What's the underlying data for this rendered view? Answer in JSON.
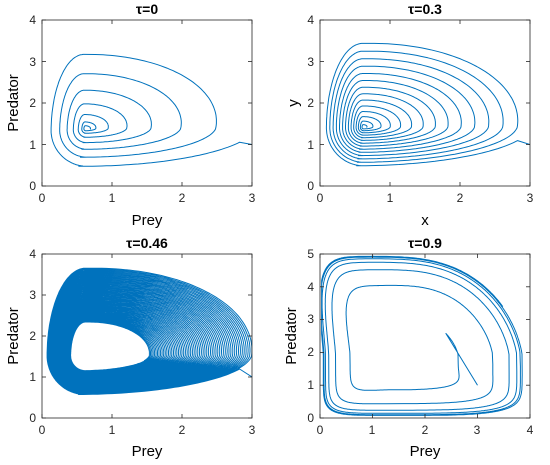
{
  "colors": {
    "line": "#0072bd",
    "axes": "#262626"
  },
  "chart_data": [
    {
      "type": "line",
      "title": "τ=0",
      "xlabel": "Prey",
      "ylabel": "Predator",
      "xlim": [
        0,
        3
      ],
      "ylim": [
        0,
        4
      ],
      "xticks": [
        0,
        1,
        2,
        3
      ],
      "yticks": [
        0,
        1,
        2,
        3,
        4
      ],
      "grid": false,
      "trajectory": {
        "start": [
          3.0,
          1.0
        ],
        "equilibrium": [
          0.62,
          1.38
        ],
        "min_radius": 0.03,
        "decay": 0.55,
        "turns": 7
      }
    },
    {
      "type": "line",
      "title": "τ=0.3",
      "xlabel": "x",
      "ylabel": "y",
      "xlim": [
        0,
        3
      ],
      "ylim": [
        0,
        4
      ],
      "xticks": [
        0,
        1,
        2,
        3
      ],
      "yticks": [
        0,
        1,
        2,
        3,
        4
      ],
      "grid": false,
      "trajectory": {
        "start": [
          3.0,
          1.0
        ],
        "equilibrium": [
          0.62,
          1.42
        ],
        "min_radius": 0.02,
        "decay": 0.78,
        "turns": 14
      }
    },
    {
      "type": "line",
      "title": "τ=0.46",
      "xlabel": "Prey",
      "ylabel": "Predator",
      "xlim": [
        0,
        3
      ],
      "ylim": [
        0,
        4
      ],
      "xticks": [
        0,
        1,
        2,
        3
      ],
      "yticks": [
        0,
        1,
        2,
        3,
        4
      ],
      "grid": false,
      "trajectory": {
        "start": [
          3.0,
          1.0
        ],
        "equilibrium": [
          0.62,
          1.52
        ],
        "min_radius": 0.38,
        "decay": 0.9,
        "turns": 60
      }
    },
    {
      "type": "line",
      "title": "τ=0.9",
      "xlabel": "Prey",
      "ylabel": "Predator",
      "xlim": [
        0,
        4
      ],
      "ylim": [
        0,
        5
      ],
      "xticks": [
        0,
        1,
        2,
        3,
        4
      ],
      "yticks": [
        0,
        1,
        2,
        3,
        4,
        5
      ],
      "grid": false,
      "trajectory": {
        "start": [
          3.0,
          1.0
        ],
        "equilibrium": [
          1.5,
          2.0
        ],
        "limit_cycle": {
          "x_min": 0.05,
          "x_max": 3.88,
          "y_min": 0.06,
          "y_max": 4.95,
          "x_at_y_max": 0.65,
          "y_at_x_max": 0.4
        },
        "turns": 6
      }
    }
  ]
}
